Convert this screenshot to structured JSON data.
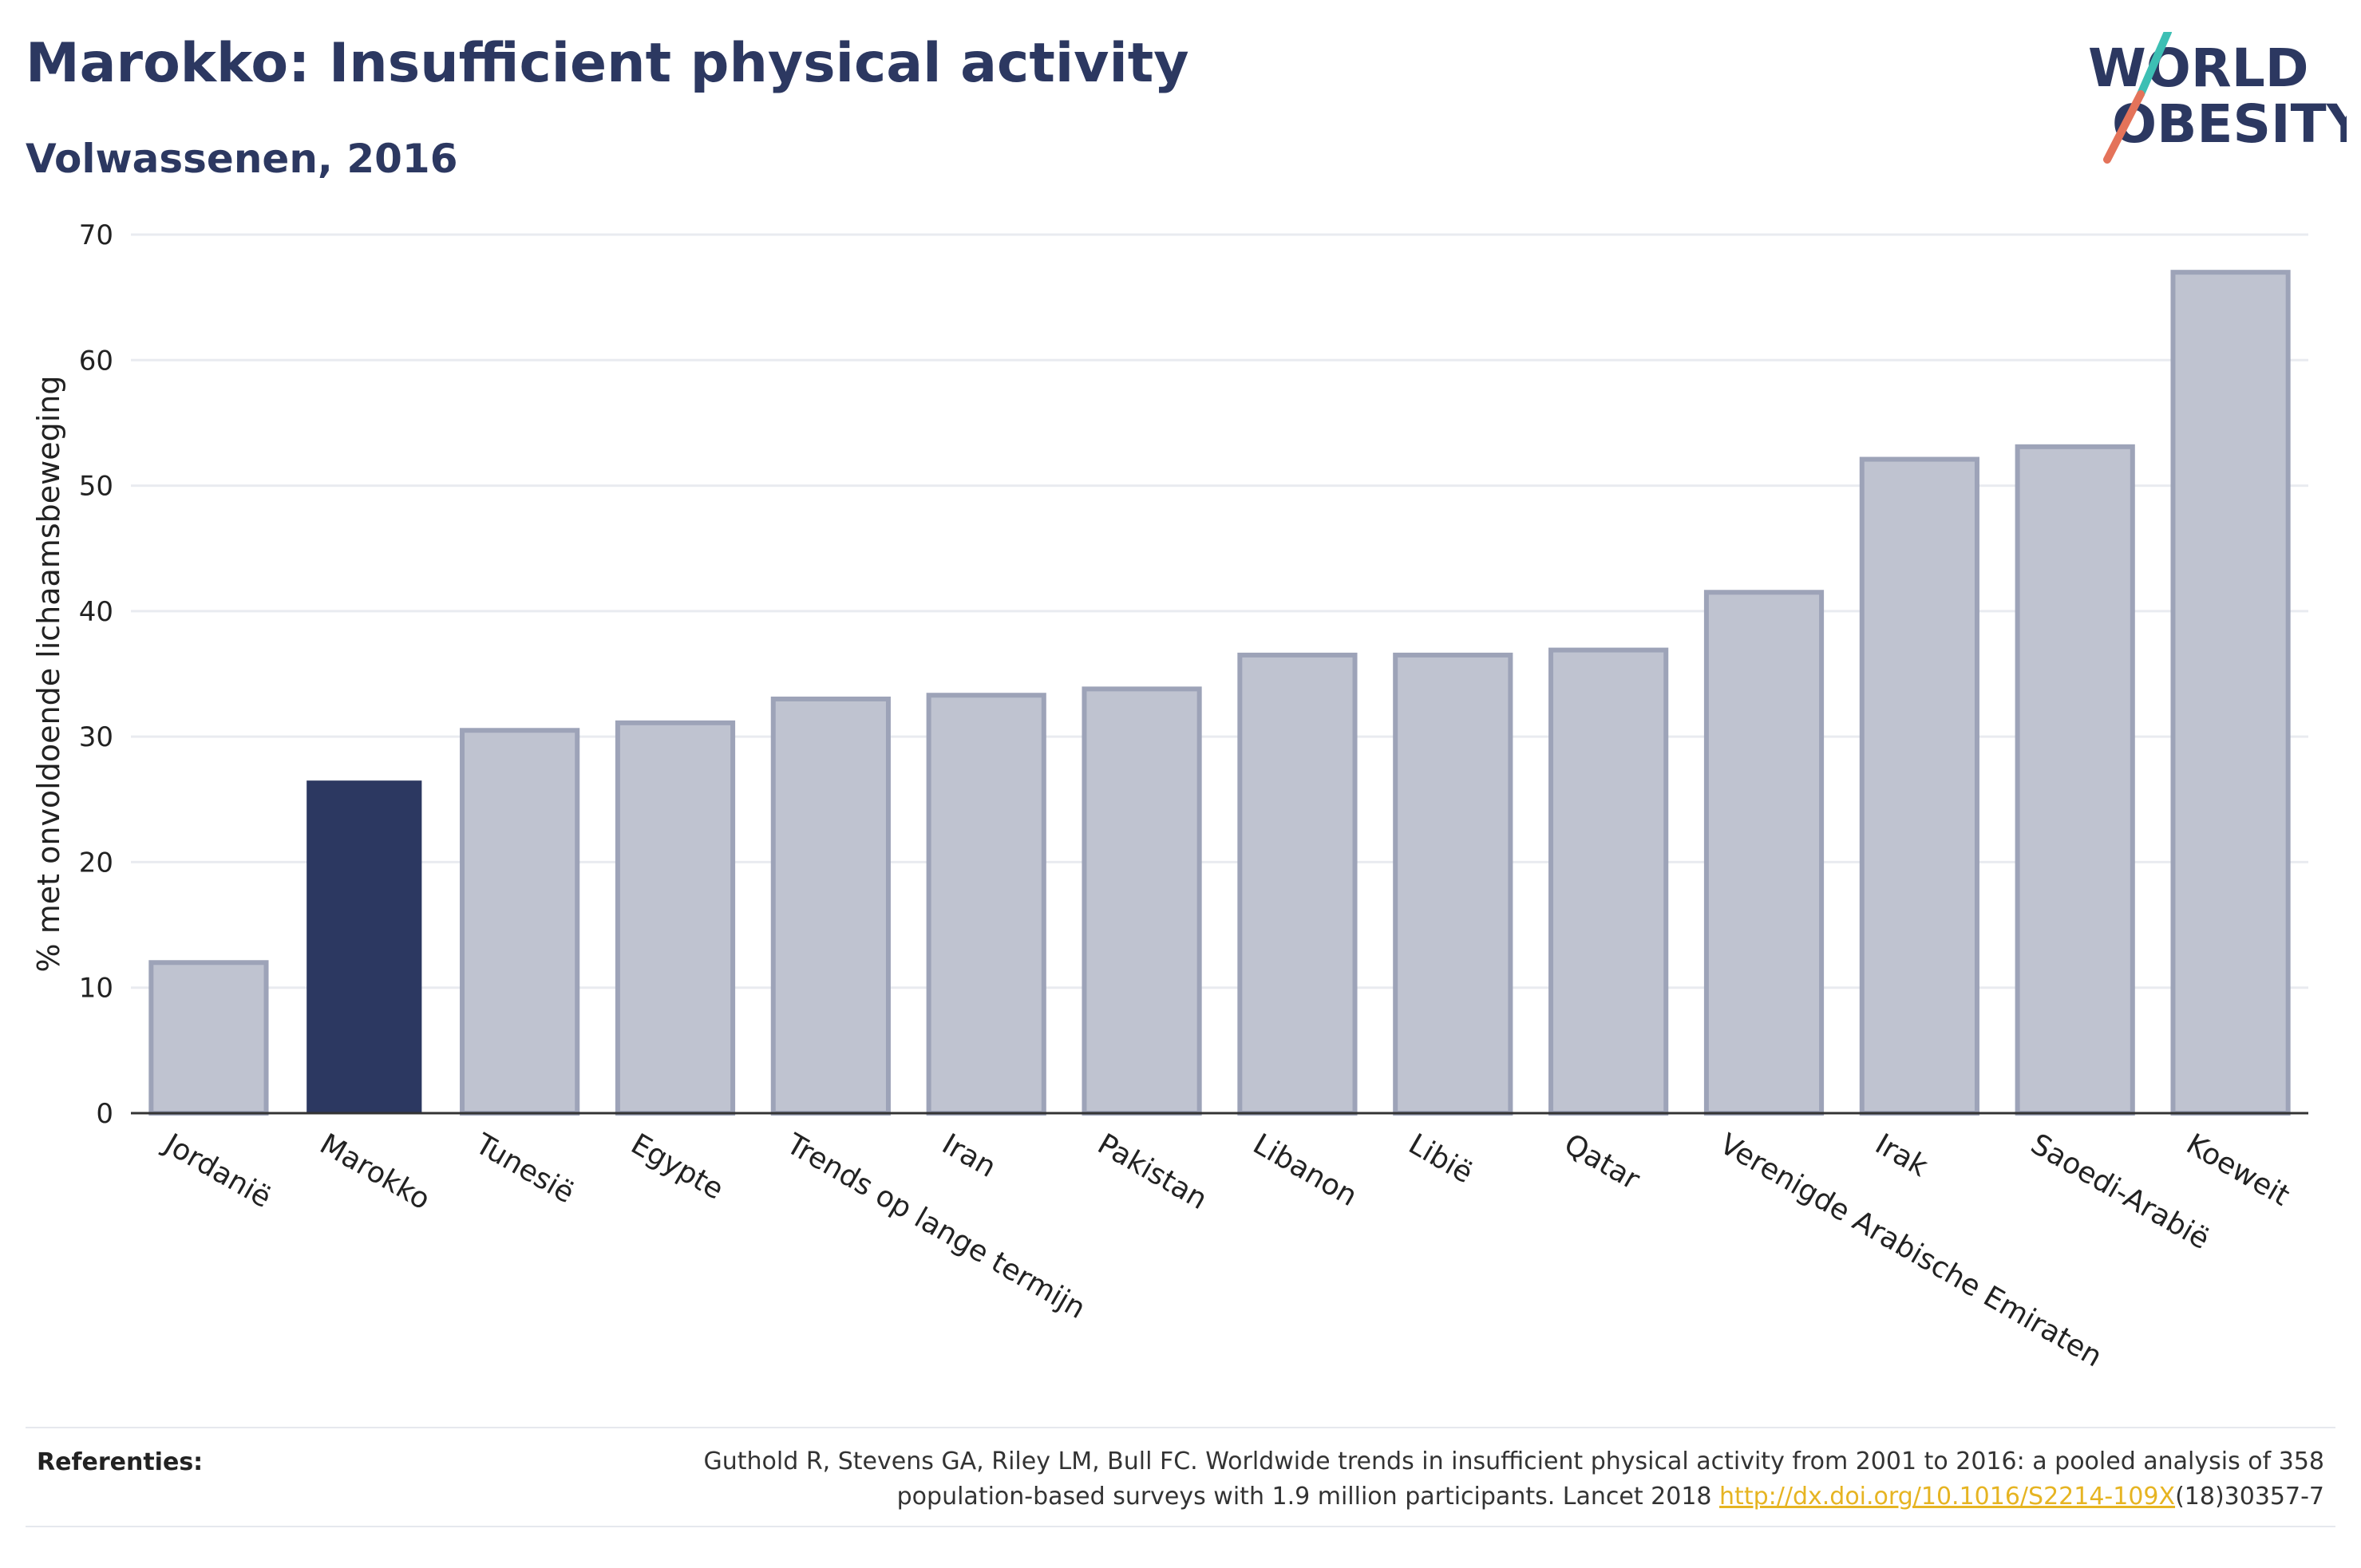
{
  "header": {
    "title": "Marokko: Insufficient physical activity",
    "subtitle": "Volwassenen, 2016"
  },
  "logo": {
    "line1": "WORLD",
    "line2": "OBESITY",
    "text_color": "#2c3861",
    "slash_color_top": "#3dbfb4",
    "slash_color_bottom": "#e4735a"
  },
  "colors": {
    "highlight": "#2c3861",
    "bar_fill": "#bfc3d0",
    "bar_stroke": "#9da3b8",
    "grid": "#e9ebf0",
    "axis": "#333333"
  },
  "chart_data": {
    "type": "bar",
    "title": "Marokko: Insufficient physical activity",
    "subtitle": "Volwassenen, 2016",
    "ylabel": "% met onvoldoende lichaamsbeweging",
    "xlabel": "",
    "ylim": [
      0,
      70
    ],
    "yticks": [
      0,
      10,
      20,
      30,
      40,
      50,
      60,
      70
    ],
    "grid": true,
    "highlight": "Marokko",
    "categories": [
      "Jordanië",
      "Marokko",
      "Tunesië",
      "Egypte",
      "Trends op lange termijn",
      "Iran",
      "Pakistan",
      "Libanon",
      "Libië",
      "Qatar",
      "Verenigde Arabische Emiraten",
      "Irak",
      "Saoedi-Arabië",
      "Koeweit"
    ],
    "values": [
      12.0,
      26.5,
      30.5,
      31.1,
      33.0,
      33.3,
      33.8,
      36.5,
      36.5,
      36.9,
      41.5,
      52.1,
      53.1,
      67.0
    ]
  },
  "footer": {
    "label": "Referenties:",
    "line1": "Guthold R, Stevens GA, Riley LM, Bull FC. Worldwide trends in insufficient physical activity from 2001 to 2016: a pooled analysis of 358",
    "line2_prefix": "population-based surveys with 1.9 million participants. Lancet 2018 ",
    "link": "http://dx.doi.org/10.1016/S2214-109X",
    "line2_suffix": "(18)30357-7"
  }
}
